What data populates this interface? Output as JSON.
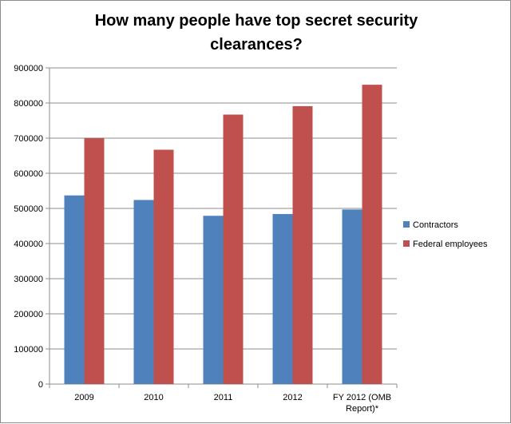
{
  "chart_data": {
    "type": "bar",
    "title": "How many people have top secret security\nclearances?",
    "categories": [
      "2009",
      "2010",
      "2011",
      "2012",
      "FY 2012 (OMB\nReport)*"
    ],
    "series": [
      {
        "name": "Contractors",
        "color": "#4f81bd",
        "values": [
          537000,
          524000,
          479000,
          484000,
          497000
        ]
      },
      {
        "name": "Federal employees",
        "color": "#c0504d",
        "values": [
          700000,
          667000,
          767000,
          791000,
          852000
        ]
      }
    ],
    "ylim": [
      0,
      900000
    ],
    "yticks": [
      0,
      100000,
      200000,
      300000,
      400000,
      500000,
      600000,
      700000,
      800000,
      900000
    ],
    "grid": true,
    "legend_position": "right"
  }
}
